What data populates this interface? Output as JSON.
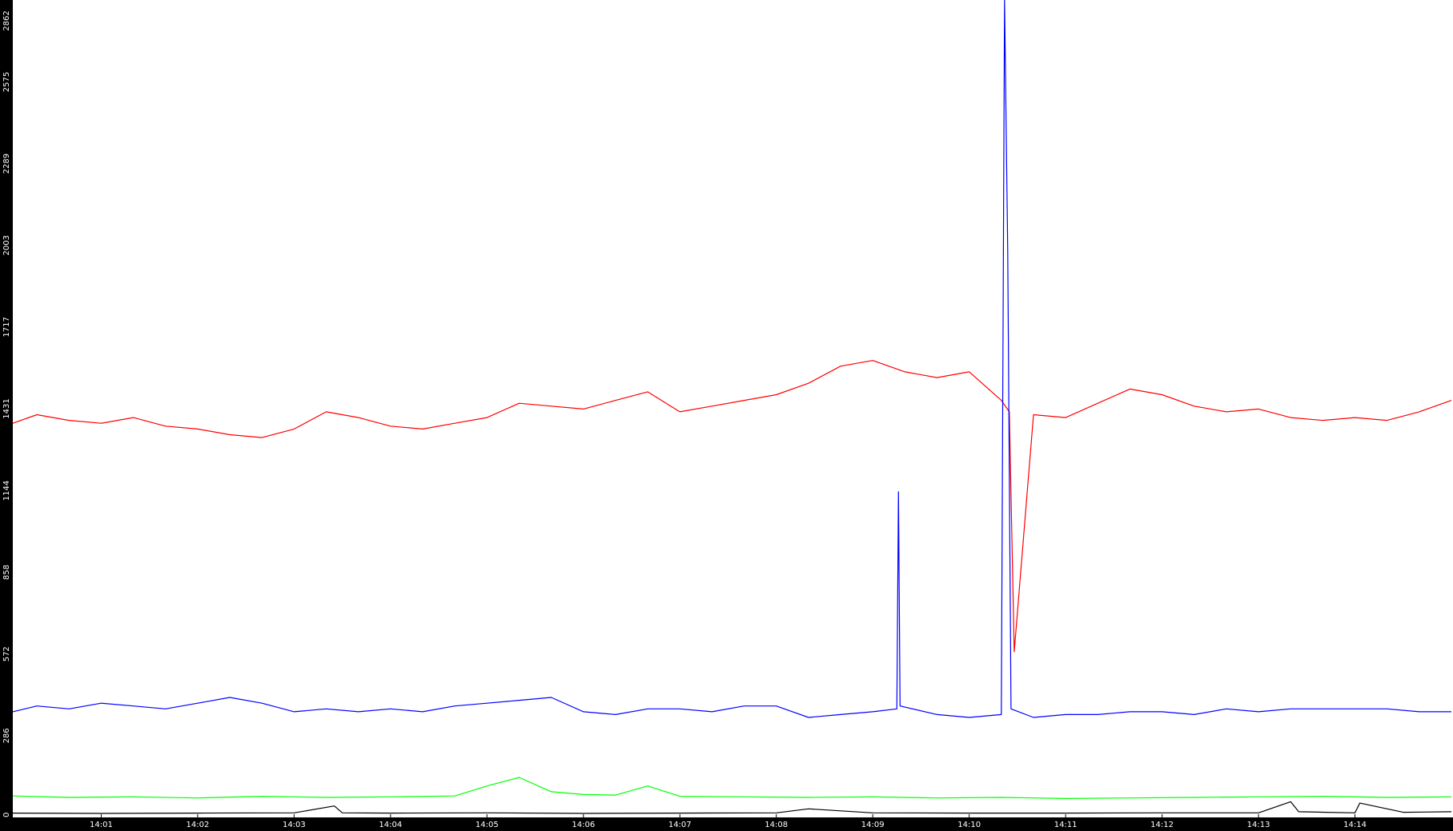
{
  "chart_data": {
    "type": "line",
    "title": "",
    "xlabel": "",
    "ylabel": "",
    "ylim": [
      0,
      2862
    ],
    "xlim": [
      "14:00:05",
      "14:15:00"
    ],
    "grid": false,
    "legend": "none",
    "background_color": "#000000",
    "plot_background_color": "#ffffff",
    "y_ticks": [
      "0",
      "286",
      "572",
      "858",
      "1144",
      "1431",
      "1717",
      "2003",
      "2289",
      "2575",
      "2862"
    ],
    "x_ticks": [
      "14:01",
      "14:02",
      "14:03",
      "14:04",
      "14:05",
      "14:06",
      "14:07",
      "14:08",
      "14:09",
      "14:10",
      "14:11",
      "14:12",
      "14:13",
      "14:14"
    ],
    "series": [
      {
        "color": "#ff0000",
        "x": [
          "14:00:05",
          "14:00:20",
          "14:00:40",
          "14:01:00",
          "14:01:20",
          "14:01:40",
          "14:02:00",
          "14:02:20",
          "14:02:40",
          "14:03:00",
          "14:03:20",
          "14:03:40",
          "14:04:00",
          "14:04:20",
          "14:04:40",
          "14:05:00",
          "14:05:20",
          "14:05:40",
          "14:06:00",
          "14:06:20",
          "14:06:40",
          "14:07:00",
          "14:07:20",
          "14:07:40",
          "14:08:00",
          "14:08:20",
          "14:08:40",
          "14:09:00",
          "14:09:20",
          "14:09:40",
          "14:10:00",
          "14:10:20",
          "14:10:25",
          "14:10:28",
          "14:10:40",
          "14:11:00",
          "14:11:20",
          "14:11:40",
          "14:12:00",
          "14:12:20",
          "14:12:40",
          "14:13:00",
          "14:13:20",
          "14:13:40",
          "14:14:00",
          "14:14:20",
          "14:14:40",
          "14:15:00"
        ],
        "values": [
          1380,
          1410,
          1390,
          1380,
          1400,
          1370,
          1360,
          1340,
          1330,
          1360,
          1420,
          1400,
          1370,
          1360,
          1380,
          1400,
          1450,
          1440,
          1430,
          1460,
          1490,
          1420,
          1440,
          1460,
          1480,
          1520,
          1580,
          1600,
          1560,
          1540,
          1560,
          1460,
          1420,
          580,
          1410,
          1400,
          1450,
          1500,
          1480,
          1440,
          1420,
          1430,
          1400,
          1390,
          1400,
          1390,
          1420,
          1460
        ]
      },
      {
        "color": "#0000ff",
        "x": [
          "14:00:05",
          "14:00:20",
          "14:00:40",
          "14:01:00",
          "14:01:20",
          "14:01:40",
          "14:02:00",
          "14:02:20",
          "14:02:40",
          "14:03:00",
          "14:03:20",
          "14:03:40",
          "14:04:00",
          "14:04:20",
          "14:04:40",
          "14:05:00",
          "14:05:20",
          "14:05:40",
          "14:06:00",
          "14:06:20",
          "14:06:40",
          "14:07:00",
          "14:07:20",
          "14:07:40",
          "14:08:00",
          "14:08:20",
          "14:08:40",
          "14:09:00",
          "14:09:15",
          "14:09:16",
          "14:09:17",
          "14:09:40",
          "14:10:00",
          "14:10:20",
          "14:10:22",
          "14:10:24",
          "14:10:26",
          "14:10:40",
          "14:11:00",
          "14:11:20",
          "14:11:40",
          "14:12:00",
          "14:12:20",
          "14:12:40",
          "14:13:00",
          "14:13:20",
          "14:13:40",
          "14:14:00",
          "14:14:20",
          "14:14:40",
          "14:15:00"
        ],
        "values": [
          370,
          390,
          380,
          400,
          390,
          380,
          400,
          420,
          400,
          370,
          380,
          370,
          380,
          370,
          390,
          400,
          410,
          420,
          370,
          360,
          380,
          380,
          370,
          390,
          390,
          350,
          360,
          370,
          380,
          1140,
          390,
          360,
          350,
          360,
          2862,
          1980,
          380,
          350,
          360,
          360,
          370,
          370,
          360,
          380,
          370,
          380,
          380,
          380,
          380,
          370,
          370
        ]
      },
      {
        "color": "#00ff00",
        "x": [
          "14:00:05",
          "14:00:40",
          "14:01:20",
          "14:02:00",
          "14:02:40",
          "14:03:20",
          "14:04:00",
          "14:04:40",
          "14:05:00",
          "14:05:20",
          "14:05:40",
          "14:06:00",
          "14:06:20",
          "14:06:40",
          "14:07:00",
          "14:07:40",
          "14:08:20",
          "14:09:00",
          "14:09:40",
          "14:10:20",
          "14:11:00",
          "14:11:40",
          "14:12:20",
          "14:13:00",
          "14:13:40",
          "14:14:20",
          "14:15:00"
        ],
        "values": [
          75,
          70,
          72,
          68,
          74,
          70,
          72,
          75,
          110,
          140,
          90,
          80,
          78,
          110,
          74,
          72,
          70,
          72,
          68,
          70,
          66,
          68,
          70,
          72,
          74,
          70,
          72
        ]
      },
      {
        "color": "#000000",
        "x": [
          "14:00:05",
          "14:01:00",
          "14:02:00",
          "14:03:00",
          "14:03:25",
          "14:03:30",
          "14:04:00",
          "14:05:00",
          "14:06:00",
          "14:07:00",
          "14:08:00",
          "14:08:20",
          "14:09:00",
          "14:10:00",
          "14:11:00",
          "14:12:00",
          "14:13:00",
          "14:13:20",
          "14:13:25",
          "14:14:00",
          "14:14:03",
          "14:14:30",
          "14:15:00"
        ],
        "values": [
          15,
          14,
          15,
          16,
          40,
          16,
          15,
          16,
          14,
          15,
          16,
          30,
          16,
          15,
          15,
          16,
          16,
          55,
          20,
          16,
          50,
          18,
          20
        ]
      }
    ]
  }
}
